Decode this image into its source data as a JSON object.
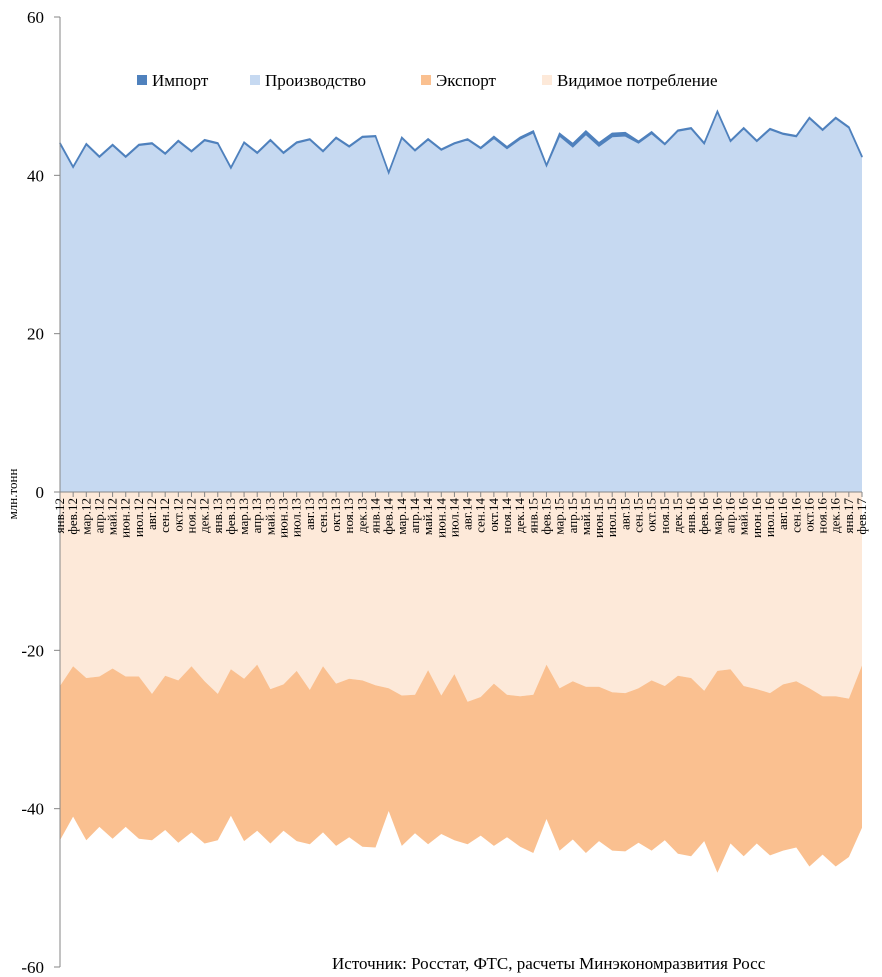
{
  "chart_data": {
    "type": "area",
    "ylabel": "млн.тонн",
    "ylim": [
      -60,
      60
    ],
    "yticks": [
      60,
      40,
      20,
      0,
      -20,
      -40,
      -60
    ],
    "grid": false,
    "legend_position": "top",
    "categories": [
      "янв.12",
      "фев.12",
      "мар.12",
      "апр.12",
      "май.12",
      "июн.12",
      "июл.12",
      "авг.12",
      "сен.12",
      "окт.12",
      "ноя.12",
      "дек.12",
      "янв.13",
      "фев.13",
      "мар.13",
      "апр.13",
      "май.13",
      "июн.13",
      "июл.13",
      "авг.13",
      "сен.13",
      "окт.13",
      "ноя.13",
      "дек.13",
      "янв.14",
      "фев.14",
      "мар.14",
      "апр.14",
      "май.14",
      "июн.14",
      "июл.14",
      "авг.14",
      "сен.14",
      "окт.14",
      "ноя.14",
      "дек.14",
      "янв.15",
      "фев.15",
      "мар.15",
      "апр.15",
      "май.15",
      "июн.15",
      "июл.15",
      "авг.15",
      "сен.15",
      "окт.15",
      "ноя.15",
      "дек.15",
      "янв.16",
      "фев.16",
      "мар.16",
      "апр.16",
      "май.16",
      "июн.16",
      "июл.16",
      "авг.16",
      "сен.16",
      "окт.16",
      "ноя.16",
      "дек.16",
      "янв.17",
      "фев.17"
    ],
    "series": [
      {
        "name": "Импорт",
        "color": "#4f81bd",
        "values": [
          0.1,
          0.1,
          0.1,
          0.1,
          0.1,
          0.1,
          0.1,
          0.1,
          0.1,
          0.1,
          0.1,
          0.1,
          0.1,
          0.1,
          0.1,
          0.1,
          0.1,
          0.1,
          0.1,
          0.1,
          0.1,
          0.1,
          0.1,
          0.1,
          0.1,
          0.1,
          0.1,
          0.1,
          0.1,
          0.1,
          0.1,
          0.1,
          0.1,
          0.2,
          0.2,
          0.2,
          0.2,
          0.1,
          0.3,
          0.4,
          0.4,
          0.4,
          0.4,
          0.4,
          0.2,
          0.2,
          0.1,
          0.1,
          0.1,
          0.1,
          0.1,
          0.1,
          0.1,
          0.1,
          0.1,
          0.1,
          0.1,
          0.1,
          0.1,
          0.1,
          0.1,
          0.1
        ]
      },
      {
        "name": "Производство",
        "color": "#c6d9f1",
        "values": [
          44.0,
          41.0,
          43.9,
          42.3,
          43.8,
          42.3,
          43.8,
          44.0,
          42.7,
          44.3,
          43.0,
          44.4,
          44.0,
          40.9,
          44.1,
          42.8,
          44.4,
          42.8,
          44.1,
          44.5,
          43.0,
          44.7,
          43.6,
          44.8,
          44.9,
          40.3,
          44.7,
          43.1,
          44.5,
          43.2,
          44.0,
          44.5,
          43.4,
          44.7,
          43.4,
          44.6,
          45.4,
          41.2,
          45.0,
          43.6,
          45.2,
          43.7,
          44.9,
          45.0,
          44.1,
          45.3,
          43.9,
          45.6,
          45.9,
          44.0,
          48.0,
          44.3,
          45.9,
          44.3,
          45.8,
          45.2,
          44.9,
          47.2,
          45.7,
          47.2,
          46.0,
          42.3
        ]
      },
      {
        "name": "Экспорт",
        "color": "#fac090",
        "values": [
          -19.5,
          -19.0,
          -20.5,
          -19.0,
          -21.5,
          -19.0,
          -20.5,
          -18.5,
          -19.5,
          -20.5,
          -21.0,
          -20.5,
          -18.5,
          -18.5,
          -20.5,
          -21.0,
          -19.5,
          -18.5,
          -21.5,
          -19.5,
          -21.0,
          -20.5,
          -20.0,
          -21.0,
          -20.5,
          -15.5,
          -19.0,
          -17.5,
          -22.0,
          -17.5,
          -21.0,
          -18.0,
          -17.5,
          -20.5,
          -18.0,
          -19.0,
          -20.0,
          -19.5,
          -20.5,
          -20.0,
          -21.0,
          -19.5,
          -20.0,
          -20.0,
          -19.5,
          -21.5,
          -19.5,
          -22.5,
          -22.5,
          -19.0,
          -25.5,
          -22.0,
          -21.5,
          -19.5,
          -20.5,
          -21.0,
          -21.0,
          -22.5,
          -20.0,
          -21.5,
          -20.0,
          -20.5
        ]
      },
      {
        "name": "Видимое потребление",
        "color": "#fde9d9",
        "values": [
          -24.5,
          -22.0,
          -23.5,
          -23.3,
          -22.3,
          -23.3,
          -23.3,
          -25.5,
          -23.2,
          -23.8,
          -22.0,
          -23.9,
          -25.5,
          -22.4,
          -23.6,
          -21.8,
          -24.9,
          -24.3,
          -22.6,
          -25.0,
          -22.0,
          -24.2,
          -23.6,
          -23.8,
          -24.4,
          -24.8,
          -25.7,
          -25.6,
          -22.5,
          -25.7,
          -23.0,
          -26.5,
          -25.9,
          -24.2,
          -25.6,
          -25.8,
          -25.6,
          -21.8,
          -24.8,
          -23.9,
          -24.6,
          -24.6,
          -25.3,
          -25.4,
          -24.8,
          -23.8,
          -24.5,
          -23.2,
          -23.5,
          -25.1,
          -22.6,
          -22.4,
          -24.5,
          -24.9,
          -25.4,
          -24.3,
          -23.9,
          -24.8,
          -25.8,
          -25.8,
          -26.1,
          -21.9
        ]
      }
    ]
  },
  "source_note": "Источник: Росстат, ФТС, расчеты Минэкономразвития Росс"
}
